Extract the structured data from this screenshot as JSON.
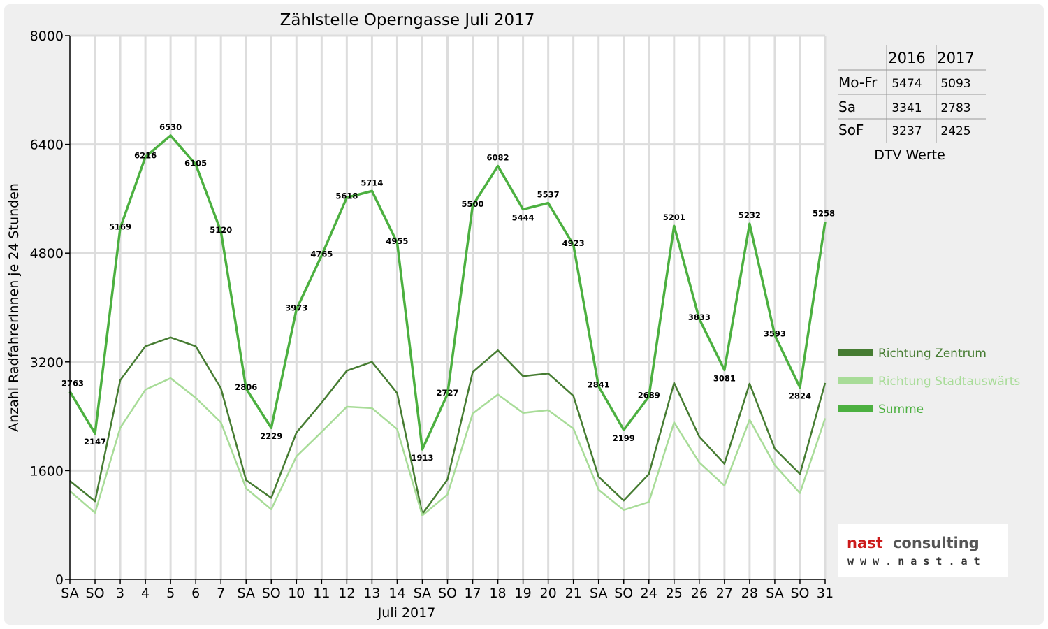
{
  "chart_data": {
    "type": "line",
    "title": "Zählstelle Operngasse Juli 2017",
    "xlabel": "Juli 2017",
    "ylabel": "Anzahl RadfahrerInnen je 24 Stunden",
    "ylim": [
      0,
      8000
    ],
    "yticks": [
      "0",
      "1600",
      "3200",
      "4800",
      "6400",
      "8000"
    ],
    "grid": true,
    "legend_position": "right",
    "categories": [
      "SA",
      "SO",
      "3",
      "4",
      "5",
      "6",
      "7",
      "SA",
      "SO",
      "10",
      "11",
      "12",
      "13",
      "14",
      "SA",
      "SO",
      "17",
      "18",
      "19",
      "20",
      "21",
      "SA",
      "SO",
      "24",
      "25",
      "26",
      "27",
      "28",
      "SA",
      "SO",
      "31"
    ],
    "sunday_label_color": "#dd0000",
    "series": [
      {
        "name": "Richtung Zentrum",
        "color": "#467c32",
        "values": [
          1450,
          1150,
          2930,
          3430,
          3560,
          3430,
          2810,
          1460,
          1200,
          2160,
          2600,
          3070,
          3200,
          2740,
          960,
          1470,
          3050,
          3370,
          2990,
          3030,
          2700,
          1510,
          1160,
          1550,
          2890,
          2100,
          1700,
          2880,
          1920,
          1550,
          2890
        ]
      },
      {
        "name": "Richtung Stadtauswärts",
        "color": "#a8dc98",
        "values": [
          1300,
          980,
          2230,
          2790,
          2960,
          2670,
          2310,
          1340,
          1030,
          1810,
          2170,
          2540,
          2520,
          2210,
          940,
          1250,
          2440,
          2720,
          2450,
          2490,
          2220,
          1320,
          1020,
          1140,
          2310,
          1720,
          1380,
          2350,
          1680,
          1270,
          2370
        ]
      },
      {
        "name": "Summe",
        "color": "#4cb040",
        "values": [
          2763,
          2147,
          5169,
          6216,
          6530,
          6105,
          5120,
          2806,
          2229,
          3973,
          4765,
          5618,
          5714,
          4955,
          1913,
          2727,
          5500,
          6082,
          5444,
          5537,
          4923,
          2841,
          2199,
          2689,
          5201,
          3833,
          3081,
          5232,
          3593,
          2824,
          5258
        ]
      }
    ],
    "data_labels": [
      "2763",
      "2147",
      "5169",
      "6216",
      "6530",
      "6105",
      "5120",
      "2806",
      "2229",
      "3973",
      "4765",
      "5618",
      "5714",
      "4955",
      "1913",
      "2727",
      "5500",
      "6082",
      "5444",
      "5537",
      "4923",
      "2841",
      "2199",
      "2689",
      "5201",
      "3833",
      "3081",
      "5232",
      "3593",
      "2824",
      "5258"
    ]
  },
  "dtv_table": {
    "columns": [
      "2016",
      "2017"
    ],
    "rows": [
      {
        "label": "Mo-Fr",
        "v2016": "5474",
        "v2017": "5093"
      },
      {
        "label": "Sa",
        "v2016": "3341",
        "v2017": "2783"
      },
      {
        "label": "SoF",
        "v2016": "3237",
        "v2017": "2425"
      }
    ],
    "caption": "DTV Werte"
  },
  "logo": {
    "name_part1": "nast",
    "name_part2": "consulting",
    "url": "w w w . n a s t . a t",
    "color_part1": "#cc1a1a",
    "color_part2": "#555555"
  }
}
